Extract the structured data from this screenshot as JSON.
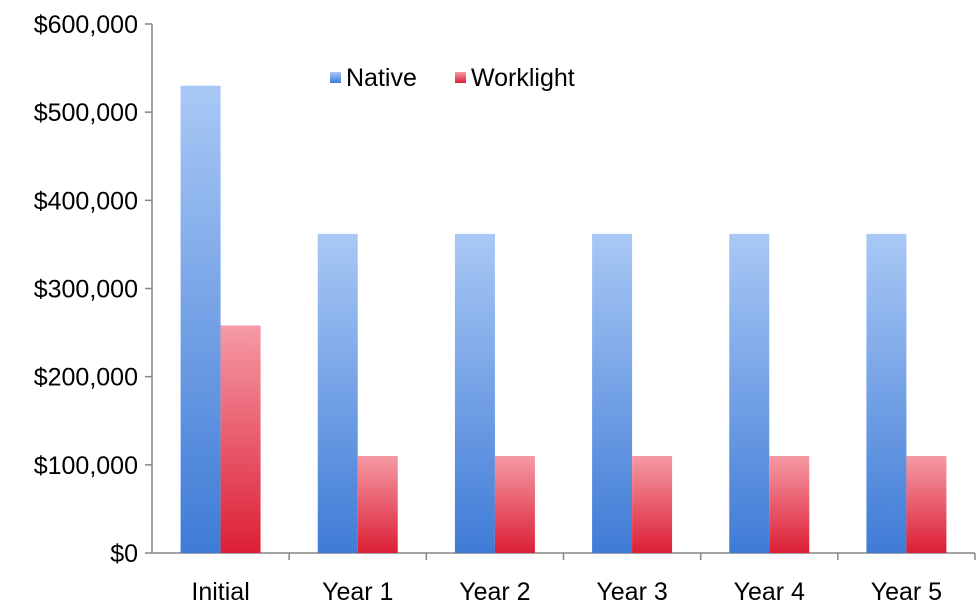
{
  "chart_data": {
    "type": "bar",
    "categories": [
      "Initial",
      "Year 1",
      "Year 2",
      "Year 3",
      "Year 4",
      "Year 5"
    ],
    "series": [
      {
        "name": "Native",
        "values": [
          530000,
          362000,
          362000,
          362000,
          362000,
          362000
        ],
        "color": "#4a86de"
      },
      {
        "name": "Worklight",
        "values": [
          258000,
          110000,
          110000,
          110000,
          110000,
          110000
        ],
        "color": "#e0243a"
      }
    ],
    "yticks": [
      "$0",
      "$100,000",
      "$200,000",
      "$300,000",
      "$400,000",
      "$500,000",
      "$600,000"
    ],
    "ylim": [
      0,
      600000
    ],
    "grid": false,
    "legend_position": "top-center"
  }
}
